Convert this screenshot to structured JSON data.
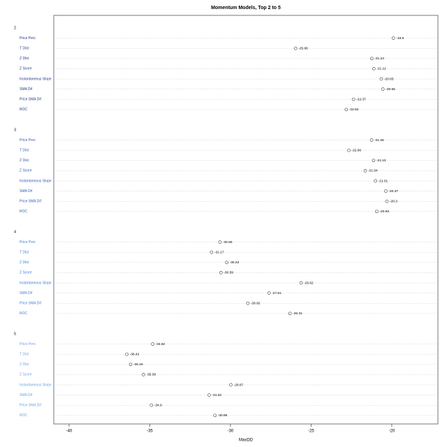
{
  "chart_data": {
    "type": "dotchart",
    "title": "Momentum Models, Top 2 to 5",
    "xlabel": "MaxDD",
    "categories": [
      "Price Perc",
      "T Dist",
      "Z Dist",
      "Z Score",
      "Instantaneous Slope",
      "SMA Dif",
      "Price SMA Dif",
      "ROC"
    ],
    "series": [
      {
        "name": "2",
        "color": "#1f3a8c",
        "values": [
          -19.9,
          -25.96,
          -21.24,
          -21.11,
          -20.65,
          -20.55,
          -22.37,
          -22.82
        ]
      },
      {
        "name": "3",
        "color": "#2d5bb5",
        "values": [
          -21.25,
          -22.66,
          -21.13,
          -21.64,
          -21.01,
          -20.37,
          -20.3,
          -20.93
        ]
      },
      {
        "name": "4",
        "color": "#3f7fd0",
        "values": [
          -30.65,
          -31.17,
          -30.23,
          -30.59,
          -25.62,
          -27.61,
          -28.92,
          -26.31
        ]
      },
      {
        "name": "5",
        "color": "#6aa3e0",
        "values": [
          -34.82,
          -36.42,
          -36.19,
          -35.39,
          -29.97,
          -31.32,
          -34.9,
          -30.96
        ]
      }
    ],
    "xlim": [
      -40.95,
      -17.14
    ],
    "xticks": [
      -40,
      -35,
      -30,
      -25,
      -20
    ],
    "grid": true
  }
}
